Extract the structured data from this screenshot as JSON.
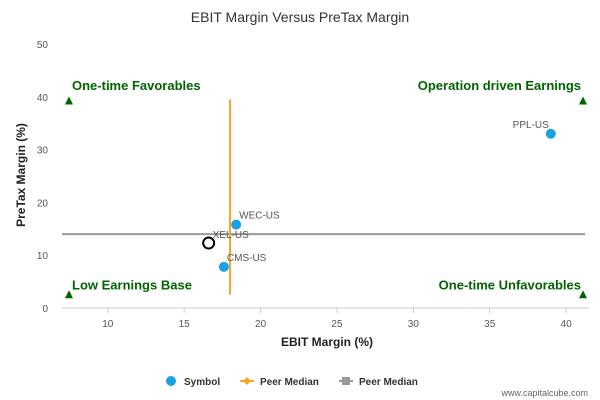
{
  "chart_data": {
    "type": "scatter",
    "title": "EBIT Margin Versus PreTax Margin",
    "xlabel": "EBIT Margin (%)",
    "ylabel": "PreTax Margin (%)",
    "xlim": [
      7,
      41.5
    ],
    "ylim": [
      0,
      50
    ],
    "xticks": [
      10,
      15,
      20,
      25,
      30,
      35,
      40
    ],
    "yticks": [
      0,
      10,
      20,
      30,
      40,
      50
    ],
    "grid": false,
    "legend_position": "bottom",
    "peer_points": [
      {
        "label": "PPL-US",
        "x": 39.0,
        "y": 33.0
      },
      {
        "label": "WEC-US",
        "x": 18.4,
        "y": 15.8
      },
      {
        "label": "CMS-US",
        "x": 17.6,
        "y": 7.8
      }
    ],
    "highlight_point": {
      "label": "XEL-US",
      "x": 16.6,
      "y": 12.3
    },
    "median_x": {
      "value": 18.0,
      "y_range": [
        2.5,
        39.5
      ],
      "color": "#f5a623"
    },
    "median_y": {
      "value": 14.0,
      "color": "#999999"
    },
    "quadrants": {
      "top_left": "One-time Favorables",
      "top_right": "Operation driven Earnings",
      "bottom_left": "Low Earnings Base",
      "bottom_right": "One-time Unfavorables"
    },
    "quadrant_marker_y": {
      "top": 39.3,
      "bottom": 2.6
    },
    "legend": [
      {
        "label": "Symbol",
        "kind": "dot",
        "color": "#1ba1e2"
      },
      {
        "label": "Peer Median",
        "kind": "line-diamond",
        "color": "#f5a623"
      },
      {
        "label": "Peer Median",
        "kind": "line-square",
        "color": "#999999"
      }
    ],
    "colors": {
      "symbol": "#1ba1e2",
      "highlight": "#000000",
      "quadrant": "#006400",
      "axis": "#cccccc"
    }
  },
  "credit": "www.capitalcube.com"
}
